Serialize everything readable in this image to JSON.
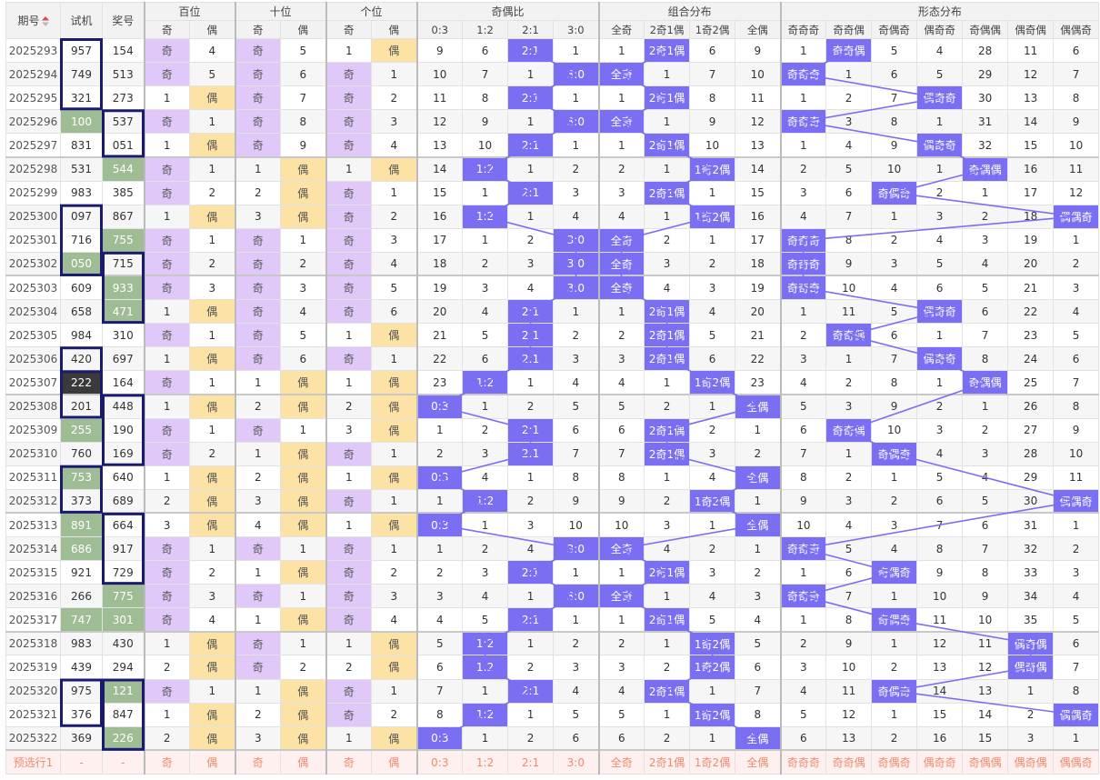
{
  "header": {
    "period": "期号",
    "test": "试机",
    "prize": "奖号",
    "bai": "百位",
    "shi": "十位",
    "ge": "个位",
    "ratio": "奇偶比",
    "combo": "组合分布",
    "form": "形态分布"
  },
  "subheaders": [
    "奇",
    "偶",
    "奇",
    "偶",
    "奇",
    "偶",
    "0:3",
    "1:2",
    "2:1",
    "3:0",
    "全奇",
    "2奇1偶",
    "1奇2偶",
    "全偶",
    "奇奇奇",
    "奇奇偶",
    "奇偶奇",
    "偶奇奇",
    "奇偶偶",
    "偶奇偶",
    "偶偶奇"
  ],
  "rows": [
    [
      "2025293",
      "957",
      "154",
      "奇",
      "4",
      "奇",
      "5",
      "1",
      "偶",
      "9",
      "6",
      "2:1",
      "1",
      "1",
      "2奇1偶",
      "6",
      "9",
      "1",
      "奇奇偶",
      "5",
      "4",
      "28",
      "11",
      "6"
    ],
    [
      "2025294",
      "749",
      "513",
      "奇",
      "5",
      "奇",
      "6",
      "奇",
      "1",
      "10",
      "7",
      "1",
      "3:0",
      "全奇",
      "1",
      "7",
      "10",
      "奇奇奇",
      "1",
      "6",
      "5",
      "29",
      "12",
      "7"
    ],
    [
      "2025295",
      "321",
      "273",
      "1",
      "偶",
      "奇",
      "7",
      "奇",
      "2",
      "11",
      "8",
      "2:1",
      "1",
      "1",
      "2奇1偶",
      "8",
      "11",
      "1",
      "2",
      "7",
      "偶奇奇",
      "30",
      "13",
      "8"
    ],
    [
      "2025296",
      "100",
      "537",
      "奇",
      "1",
      "奇",
      "8",
      "奇",
      "3",
      "12",
      "9",
      "1",
      "3:0",
      "全奇",
      "1",
      "9",
      "12",
      "奇奇奇",
      "3",
      "8",
      "1",
      "31",
      "14",
      "9"
    ],
    [
      "2025297",
      "831",
      "051",
      "1",
      "偶",
      "奇",
      "9",
      "奇",
      "4",
      "13",
      "10",
      "2:1",
      "1",
      "1",
      "2奇1偶",
      "10",
      "13",
      "1",
      "4",
      "9",
      "偶奇奇",
      "32",
      "15",
      "10"
    ],
    [
      "2025298",
      "531",
      "544",
      "奇",
      "1",
      "1",
      "偶",
      "1",
      "偶",
      "14",
      "1:2",
      "1",
      "2",
      "2",
      "1",
      "1奇2偶",
      "14",
      "2",
      "5",
      "10",
      "1",
      "奇偶偶",
      "16",
      "11"
    ],
    [
      "2025299",
      "983",
      "385",
      "奇",
      "2",
      "2",
      "偶",
      "奇",
      "1",
      "15",
      "1",
      "2:1",
      "3",
      "3",
      "2奇1偶",
      "1",
      "15",
      "3",
      "6",
      "奇偶奇",
      "2",
      "1",
      "17",
      "12"
    ],
    [
      "2025300",
      "097",
      "867",
      "1",
      "偶",
      "3",
      "偶",
      "奇",
      "2",
      "16",
      "1:2",
      "1",
      "4",
      "4",
      "1",
      "1奇2偶",
      "16",
      "4",
      "7",
      "1",
      "3",
      "2",
      "18",
      "偶偶奇"
    ],
    [
      "2025301",
      "716",
      "755",
      "奇",
      "1",
      "奇",
      "1",
      "奇",
      "3",
      "17",
      "1",
      "2",
      "3:0",
      "全奇",
      "2",
      "1",
      "17",
      "奇奇奇",
      "8",
      "2",
      "4",
      "3",
      "19",
      "1"
    ],
    [
      "2025302",
      "050",
      "715",
      "奇",
      "2",
      "奇",
      "2",
      "奇",
      "4",
      "18",
      "2",
      "3",
      "3:0",
      "全奇",
      "3",
      "2",
      "18",
      "奇奇奇",
      "9",
      "3",
      "5",
      "4",
      "20",
      "2"
    ],
    [
      "2025303",
      "609",
      "933",
      "奇",
      "3",
      "奇",
      "3",
      "奇",
      "5",
      "19",
      "3",
      "4",
      "3:0",
      "全奇",
      "4",
      "3",
      "19",
      "奇奇奇",
      "10",
      "4",
      "6",
      "5",
      "21",
      "3"
    ],
    [
      "2025304",
      "658",
      "471",
      "1",
      "偶",
      "奇",
      "4",
      "奇",
      "6",
      "20",
      "4",
      "2:1",
      "1",
      "1",
      "2奇1偶",
      "4",
      "20",
      "1",
      "11",
      "5",
      "偶奇奇",
      "6",
      "22",
      "4"
    ],
    [
      "2025305",
      "984",
      "310",
      "奇",
      "1",
      "奇",
      "5",
      "1",
      "偶",
      "21",
      "5",
      "2:1",
      "2",
      "2",
      "2奇1偶",
      "5",
      "21",
      "2",
      "奇奇偶",
      "6",
      "1",
      "7",
      "23",
      "5"
    ],
    [
      "2025306",
      "420",
      "697",
      "1",
      "偶",
      "奇",
      "6",
      "奇",
      "1",
      "22",
      "6",
      "2:1",
      "3",
      "3",
      "2奇1偶",
      "6",
      "22",
      "3",
      "1",
      "7",
      "偶奇奇",
      "8",
      "24",
      "6"
    ],
    [
      "2025307",
      "222",
      "164",
      "奇",
      "1",
      "1",
      "偶",
      "1",
      "偶",
      "23",
      "1:2",
      "1",
      "4",
      "4",
      "1",
      "1奇2偶",
      "23",
      "4",
      "2",
      "8",
      "1",
      "奇偶偶",
      "25",
      "7"
    ],
    [
      "2025308",
      "201",
      "448",
      "1",
      "偶",
      "2",
      "偶",
      "2",
      "偶",
      "0:3",
      "1",
      "2",
      "5",
      "5",
      "2",
      "1",
      "全偶",
      "5",
      "3",
      "9",
      "2",
      "1",
      "26",
      "8"
    ],
    [
      "2025309",
      "255",
      "190",
      "奇",
      "1",
      "奇",
      "1",
      "3",
      "偶",
      "1",
      "2",
      "2:1",
      "6",
      "6",
      "2奇1偶",
      "2",
      "1",
      "6",
      "奇奇偶",
      "10",
      "3",
      "2",
      "27",
      "9"
    ],
    [
      "2025310",
      "760",
      "169",
      "奇",
      "2",
      "1",
      "偶",
      "奇",
      "1",
      "2",
      "3",
      "2:1",
      "7",
      "7",
      "2奇1偶",
      "3",
      "2",
      "7",
      "1",
      "奇偶奇",
      "4",
      "3",
      "28",
      "10"
    ],
    [
      "2025311",
      "753",
      "640",
      "1",
      "偶",
      "2",
      "偶",
      "1",
      "偶",
      "0:3",
      "4",
      "1",
      "8",
      "8",
      "1",
      "4",
      "全偶",
      "8",
      "2",
      "1",
      "5",
      "4",
      "29",
      "11"
    ],
    [
      "2025312",
      "373",
      "689",
      "2",
      "偶",
      "3",
      "偶",
      "奇",
      "1",
      "1",
      "1:2",
      "2",
      "9",
      "9",
      "2",
      "1奇2偶",
      "1",
      "9",
      "3",
      "2",
      "6",
      "5",
      "30",
      "偶偶奇"
    ],
    [
      "2025313",
      "891",
      "664",
      "3",
      "偶",
      "4",
      "偶",
      "1",
      "偶",
      "0:3",
      "1",
      "3",
      "10",
      "10",
      "3",
      "1",
      "全偶",
      "10",
      "4",
      "3",
      "7",
      "6",
      "31",
      "1"
    ],
    [
      "2025314",
      "686",
      "917",
      "奇",
      "1",
      "奇",
      "1",
      "奇",
      "1",
      "1",
      "2",
      "4",
      "3:0",
      "全奇",
      "4",
      "2",
      "1",
      "奇奇奇",
      "5",
      "4",
      "8",
      "7",
      "32",
      "2"
    ],
    [
      "2025315",
      "921",
      "729",
      "奇",
      "2",
      "1",
      "偶",
      "奇",
      "2",
      "2",
      "3",
      "2:1",
      "1",
      "1",
      "2奇1偶",
      "3",
      "2",
      "1",
      "6",
      "奇偶奇",
      "9",
      "8",
      "33",
      "3"
    ],
    [
      "2025316",
      "266",
      "775",
      "奇",
      "3",
      "奇",
      "1",
      "奇",
      "3",
      "3",
      "4",
      "1",
      "3:0",
      "全奇",
      "1",
      "4",
      "3",
      "奇奇奇",
      "7",
      "1",
      "10",
      "9",
      "34",
      "4"
    ],
    [
      "2025317",
      "747",
      "301",
      "奇",
      "4",
      "1",
      "偶",
      "奇",
      "4",
      "4",
      "5",
      "2:1",
      "1",
      "1",
      "2奇1偶",
      "5",
      "4",
      "1",
      "8",
      "奇偶奇",
      "11",
      "10",
      "35",
      "5"
    ],
    [
      "2025318",
      "983",
      "430",
      "1",
      "偶",
      "奇",
      "1",
      "1",
      "偶",
      "5",
      "1:2",
      "1",
      "2",
      "2",
      "1",
      "1奇2偶",
      "5",
      "2",
      "9",
      "1",
      "12",
      "11",
      "偶奇偶",
      "6"
    ],
    [
      "2025319",
      "439",
      "294",
      "2",
      "偶",
      "奇",
      "2",
      "2",
      "偶",
      "6",
      "1:2",
      "2",
      "3",
      "3",
      "2",
      "1奇2偶",
      "6",
      "3",
      "10",
      "2",
      "13",
      "12",
      "偶奇偶",
      "7"
    ],
    [
      "2025320",
      "975",
      "121",
      "奇",
      "1",
      "1",
      "偶",
      "奇",
      "1",
      "7",
      "1",
      "2:1",
      "4",
      "4",
      "2奇1偶",
      "1",
      "7",
      "4",
      "11",
      "奇偶奇",
      "14",
      "13",
      "1",
      "8"
    ],
    [
      "2025321",
      "376",
      "847",
      "1",
      "偶",
      "2",
      "偶",
      "奇",
      "2",
      "8",
      "1:2",
      "1",
      "5",
      "5",
      "1",
      "1奇2偶",
      "8",
      "5",
      "12",
      "1",
      "15",
      "14",
      "2",
      "偶偶奇"
    ],
    [
      "2025322",
      "369",
      "226",
      "2",
      "偶",
      "3",
      "偶",
      "1",
      "偶",
      "0:3",
      "1",
      "2",
      "6",
      "6",
      "2",
      "1",
      "全偶",
      "6",
      "13",
      "2",
      "16",
      "15",
      "3",
      "1"
    ]
  ],
  "forecast": {
    "period": "预选行1",
    "test": "-",
    "prize": "-",
    "cells": [
      "奇",
      "偶",
      "奇",
      "偶",
      "奇",
      "偶",
      "0:3",
      "1:2",
      "2:1",
      "3:0",
      "全奇",
      "2奇1偶",
      "1奇2偶",
      "全偶",
      "奇奇奇",
      "奇奇偶",
      "奇偶奇",
      "偶奇奇",
      "奇偶偶",
      "偶奇偶",
      "偶偶奇"
    ]
  },
  "colors": {
    "odd_cell": "#e0c8f8",
    "even_cell": "#fde2a6",
    "hit_cell": "#7a6ff2",
    "match_cell": "#9fbd95",
    "repeat_cell": "#3a3a3a",
    "frame": "#1a1a6e",
    "trend_line": "#7a6ff2",
    "forecast_text": "#f08a6e"
  },
  "icons": {
    "sort": "sort-arrows-icon"
  }
}
